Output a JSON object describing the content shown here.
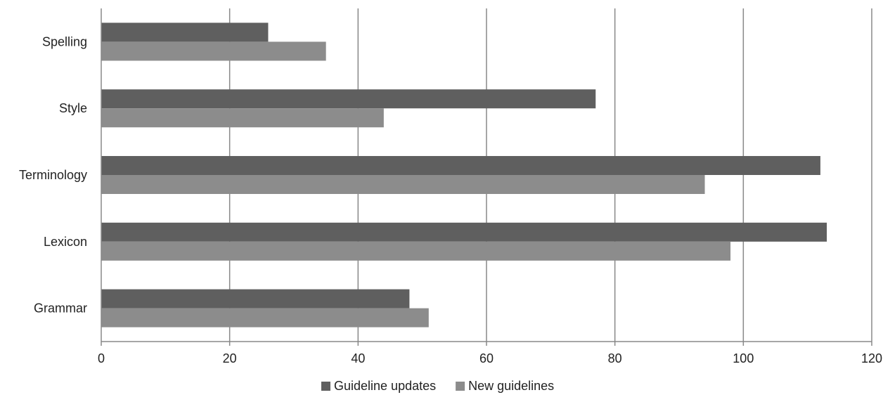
{
  "chart_data": {
    "type": "bar",
    "orientation": "horizontal",
    "categories": [
      "Spelling",
      "Style",
      "Terminology",
      "Lexicon",
      "Grammar"
    ],
    "series": [
      {
        "name": "Guideline updates",
        "color": "#5f5f5f",
        "values": [
          26,
          77,
          112,
          113,
          48
        ]
      },
      {
        "name": "New guidelines",
        "color": "#8c8c8c",
        "values": [
          35,
          44,
          94,
          98,
          51
        ]
      }
    ],
    "xlim": [
      0,
      120
    ],
    "xticks": [
      0,
      20,
      40,
      60,
      80,
      100,
      120
    ],
    "grid": true,
    "legend_position": "bottom"
  }
}
